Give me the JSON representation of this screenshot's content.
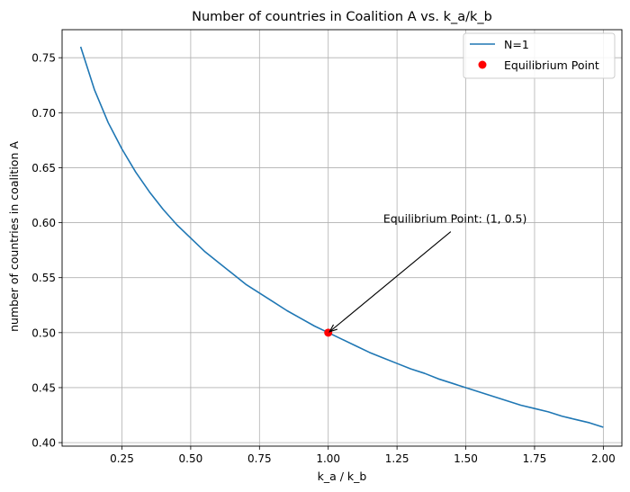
{
  "chart_data": {
    "type": "line",
    "title": "Number of countries in Coalition A vs. k_a/k_b",
    "xlabel": "k_a / k_b",
    "ylabel": "number of countries in coalition A",
    "xlim": [
      0.0325,
      2.0675
    ],
    "ylim": [
      0.3968,
      0.7755
    ],
    "xticks": [
      0.25,
      0.5,
      0.75,
      1.0,
      1.25,
      1.5,
      1.75,
      2.0
    ],
    "xtick_labels": [
      "0.25",
      "0.50",
      "0.75",
      "1.00",
      "1.25",
      "1.50",
      "1.75",
      "2.00"
    ],
    "yticks": [
      0.4,
      0.45,
      0.5,
      0.55,
      0.6,
      0.65,
      0.7,
      0.75
    ],
    "ytick_labels": [
      "0.40",
      "0.45",
      "0.50",
      "0.55",
      "0.60",
      "0.65",
      "0.70",
      "0.75"
    ],
    "grid": true,
    "legend_position": "top-right",
    "series": [
      {
        "name": "N=1",
        "color": "#1f77b4",
        "x": [
          0.1,
          0.15,
          0.2,
          0.25,
          0.3,
          0.35,
          0.4,
          0.45,
          0.5,
          0.55,
          0.6,
          0.65,
          0.7,
          0.75,
          0.8,
          0.85,
          0.9,
          0.95,
          1.0,
          1.05,
          1.1,
          1.15,
          1.2,
          1.25,
          1.3,
          1.35,
          1.4,
          1.45,
          1.5,
          1.55,
          1.6,
          1.65,
          1.7,
          1.75,
          1.8,
          1.85,
          1.9,
          1.95,
          2.0
        ],
        "y": [
          0.76,
          0.721,
          0.691,
          0.667,
          0.646,
          0.628,
          0.612,
          0.598,
          0.586,
          0.574,
          0.564,
          0.554,
          0.544,
          0.536,
          0.528,
          0.52,
          0.513,
          0.506,
          0.5,
          0.494,
          0.488,
          0.482,
          0.477,
          0.472,
          0.467,
          0.463,
          0.458,
          0.454,
          0.45,
          0.446,
          0.442,
          0.438,
          0.434,
          0.431,
          0.428,
          0.424,
          0.421,
          0.418,
          0.414
        ]
      }
    ],
    "equilibrium": {
      "name": "Equilibrium Point",
      "color": "#ff0000",
      "x": 1.0,
      "y": 0.5
    },
    "annotation": {
      "text": "Equilibrium Point: (1, 0.5)",
      "text_x": 1.2,
      "text_y": 0.6,
      "target_x": 1.0,
      "target_y": 0.5
    }
  }
}
